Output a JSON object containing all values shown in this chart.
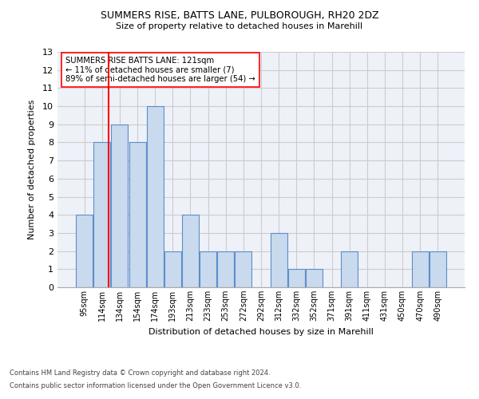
{
  "title1": "SUMMERS RISE, BATTS LANE, PULBOROUGH, RH20 2DZ",
  "title2": "Size of property relative to detached houses in Marehill",
  "xlabel": "Distribution of detached houses by size in Marehill",
  "ylabel": "Number of detached properties",
  "footnote1": "Contains HM Land Registry data © Crown copyright and database right 2024.",
  "footnote2": "Contains public sector information licensed under the Open Government Licence v3.0.",
  "bar_labels": [
    "95sqm",
    "114sqm",
    "134sqm",
    "154sqm",
    "174sqm",
    "193sqm",
    "213sqm",
    "233sqm",
    "253sqm",
    "272sqm",
    "292sqm",
    "312sqm",
    "332sqm",
    "352sqm",
    "371sqm",
    "391sqm",
    "411sqm",
    "431sqm",
    "450sqm",
    "470sqm",
    "490sqm"
  ],
  "bar_values": [
    4,
    8,
    9,
    8,
    10,
    2,
    4,
    2,
    2,
    2,
    0,
    3,
    1,
    1,
    0,
    2,
    0,
    0,
    0,
    2,
    2
  ],
  "bar_color": "#c9d9ee",
  "bar_edge_color": "#5b8fc9",
  "subject_line_color": "red",
  "annotation_box_text": "SUMMERS RISE BATTS LANE: 121sqm\n← 11% of detached houses are smaller (7)\n89% of semi-detached houses are larger (54) →",
  "ylim": [
    0,
    13
  ],
  "yticks": [
    0,
    1,
    2,
    3,
    4,
    5,
    6,
    7,
    8,
    9,
    10,
    11,
    12,
    13
  ],
  "grid_color": "#cccccc",
  "background_color": "#eef2f8"
}
